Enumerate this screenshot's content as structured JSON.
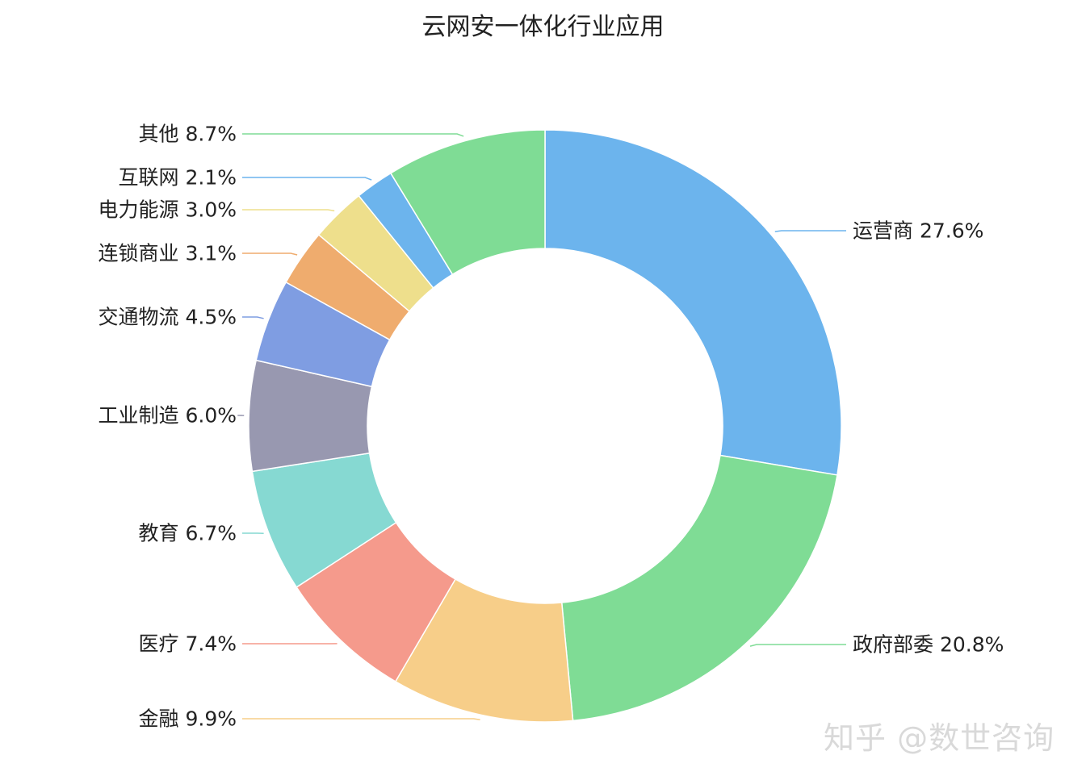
{
  "chart_data": {
    "type": "pie",
    "subtype": "donut",
    "title": "云网安一体化行业应用",
    "slices": [
      {
        "label": "运营商",
        "value": 27.6,
        "color": "#6cb4ed"
      },
      {
        "label": "政府部委",
        "value": 20.8,
        "color": "#7fdc95"
      },
      {
        "label": "金融",
        "value": 9.9,
        "color": "#f7ce89"
      },
      {
        "label": "医疗",
        "value": 7.4,
        "color": "#f59a8c"
      },
      {
        "label": "教育",
        "value": 6.7,
        "color": "#86d9d2"
      },
      {
        "label": "工业制造",
        "value": 6.0,
        "color": "#9898b0"
      },
      {
        "label": "交通物流",
        "value": 4.5,
        "color": "#7f9de2"
      },
      {
        "label": "连锁商业",
        "value": 3.1,
        "color": "#efac6e"
      },
      {
        "label": "电力能源",
        "value": 3.0,
        "color": "#eedf8c"
      },
      {
        "label": "互联网",
        "value": 2.1,
        "color": "#6cb4ed"
      },
      {
        "label": "其他",
        "value": 8.7,
        "color": "#7fdc95"
      }
    ],
    "legend": "none",
    "label_format": "{label} {value}%"
  },
  "watermark": "知乎 @数世咨询"
}
